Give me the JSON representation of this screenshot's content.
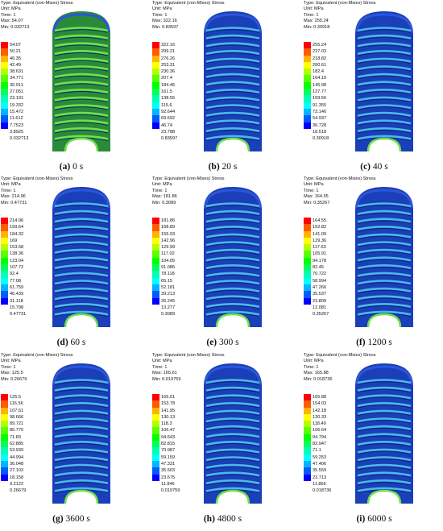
{
  "legend_colors": [
    "#ff0000",
    "#ff5a00",
    "#ffb400",
    "#ffff00",
    "#b4ff00",
    "#5aff00",
    "#00ff00",
    "#00ff5a",
    "#00ffb4",
    "#00ffff",
    "#00b4ff",
    "#005aff",
    "#0000ff"
  ],
  "panels": [
    {
      "type": "Type: Equivalent (von-Mises) Stress",
      "unit": "Unit: MPa",
      "time": "Time: 1",
      "max": "Max: 54.07",
      "min": "Min: 0.032713",
      "legend": [
        "54.07",
        "50.21",
        "46.35",
        "42.49",
        "38.631",
        "34.771",
        "30.911",
        "27.051",
        "23.191",
        "19.332",
        "15.472",
        "11.612",
        "7.7523",
        "3.8925",
        "0.032713"
      ],
      "label": "(a)",
      "caption": "0 s",
      "body_color": "#2a8a3a",
      "band_color": "#6fe04a"
    },
    {
      "type": "Type: Equivalent (von-Mises) Stress",
      "unit": "Unit: MPa",
      "time": "Time: 1",
      "max": "Max: 322.16",
      "min": "Min: 0.83597",
      "legend": [
        "322.16",
        "299.21",
        "276.26",
        "253.31",
        "230.36",
        "207.4",
        "184.45",
        "161.5",
        "138.55",
        "115.6",
        "92.644",
        "69.692",
        "46.74",
        "23.788",
        "0.83597"
      ],
      "label": "(b)",
      "caption": "20 s",
      "body_color": "#1a3fb8",
      "band_color": "#4ab8e8"
    },
    {
      "type": "Type: Equivalent (von-Mises) Stress",
      "unit": "Unit: MPa",
      "time": "Time: 1",
      "max": "Max: 255.24",
      "min": "Min: 0.30918",
      "legend": [
        "255.24",
        "237.03",
        "218.82",
        "200.61",
        "182.4",
        "164.19",
        "145.98",
        "127.77",
        "109.56",
        "91.355",
        "73.146",
        "54.937",
        "36.728",
        "18.518",
        "0.30918"
      ],
      "label": "(c)",
      "caption": "40 s",
      "body_color": "#1a3fb8",
      "band_color": "#4ab8e8"
    },
    {
      "type": "Type: Equivalent (von-Mises) Stress",
      "unit": "Unit: MPa",
      "time": "Time: 1",
      "max": "Max: 214.96",
      "min": "Min: 0.47731",
      "legend": [
        "214.96",
        "199.64",
        "184.32",
        "169",
        "153.68",
        "138.36",
        "123.04",
        "107.72",
        "92.4",
        "77.08",
        "61.759",
        "46.439",
        "31.118",
        "15.798",
        "0.47731"
      ],
      "label": "(d)",
      "caption": "60 s",
      "body_color": "#1a3fb8",
      "band_color": "#4ab8e8"
    },
    {
      "type": "Type: Equivalent (von-Mises) Stress",
      "unit": "Unit: MPa",
      "time": "Time: 1",
      "max": "Max: 181.86",
      "min": "Min: 0.3089",
      "legend": [
        "181.86",
        "168.89",
        "155.93",
        "142.96",
        "129.99",
        "117.02",
        "104.05",
        "91.086",
        "78.118",
        "65.15",
        "52.181",
        "39.213",
        "26.245",
        "13.277",
        "0.3089"
      ],
      "label": "(e)",
      "caption": "300 s",
      "body_color": "#1a3fb8",
      "band_color": "#4ab8e8"
    },
    {
      "type": "Type: Equivalent (von-Mises) Stress",
      "unit": "Unit: MPa",
      "time": "Time: 1",
      "max": "Max: 164.55",
      "min": "Min: 0.35267",
      "legend": [
        "164.55",
        "152.82",
        "141.09",
        "129.36",
        "117.63",
        "105.91",
        "94.178",
        "82.45",
        "70.722",
        "58.994",
        "47.266",
        "35.537",
        "23.809",
        "12.081",
        "0.35267"
      ],
      "label": "(f)",
      "caption": "1200 s",
      "body_color": "#1a3fb8",
      "band_color": "#4ab8e8"
    },
    {
      "type": "Type: Equivalent (von-Mises) Stress",
      "unit": "Unit: MPa",
      "time": "Time: 1",
      "max": "Max: 125.5",
      "min": "Min: 0.26679",
      "legend": [
        "125.5",
        "116.56",
        "107.61",
        "98.666",
        "89.721",
        "80.775",
        "71.83",
        "62.885",
        "53.939",
        "44.994",
        "36.048",
        "27.103",
        "18.158",
        "9.2122",
        "0.26679"
      ],
      "label": "(g)",
      "caption": "3600 s",
      "body_color": "#1a3fb8",
      "band_color": "#4ab8e8"
    },
    {
      "type": "Type: Equivalent (von-Mises) Stress",
      "unit": "Unit: MPa",
      "time": "Time: 1",
      "max": "Max: 165.61",
      "min": "Min: 0.019759",
      "legend": [
        "165.61",
        "153.78",
        "141.95",
        "130.13",
        "118.3",
        "106.47",
        "94.643",
        "82.815",
        "70.987",
        "59.159",
        "47.331",
        "35.503",
        "23.675",
        "11.846",
        "0.019759"
      ],
      "label": "(h)",
      "caption": "4800 s",
      "body_color": "#1a3fb8",
      "band_color": "#4ab8e8"
    },
    {
      "type": "Type: Equivalent (von-Mises) Stress",
      "unit": "Unit: MPa",
      "time": "Time: 1",
      "max": "Max: 165.88",
      "min": "Min: 0.018736",
      "legend": [
        "165.88",
        "154.03",
        "142.18",
        "130.33",
        "118.49",
        "106.64",
        "94.794",
        "82.947",
        "71.1",
        "59.253",
        "47.406",
        "35.559",
        "23.713",
        "11.866",
        "0.018736"
      ],
      "label": "(i)",
      "caption": "6000 s",
      "body_color": "#1a3fb8",
      "band_color": "#4ab8e8"
    }
  ]
}
